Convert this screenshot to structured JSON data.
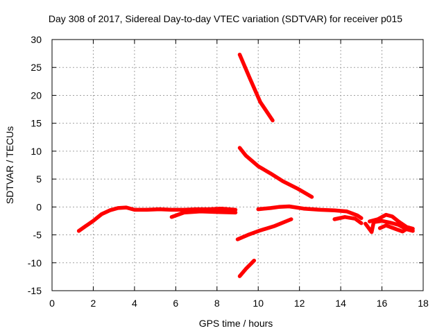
{
  "chart_data": {
    "type": "scatter",
    "title": "Day 308 of 2017, Sidereal Day-to-day VTEC variation (SDTVAR) for receiver p015",
    "xlabel": "GPS time / hours",
    "ylabel": "SDTVAR / TECUs",
    "xlim": [
      0,
      18
    ],
    "ylim": [
      -15,
      30
    ],
    "xticks": [
      "0",
      "2",
      "4",
      "6",
      "8",
      "10",
      "12",
      "14",
      "16",
      "18"
    ],
    "yticks": [
      "-15",
      "-10",
      "-5",
      "0",
      "5",
      "10",
      "15",
      "20",
      "25",
      "30"
    ],
    "grid": true,
    "color": "#ff0000",
    "series": [
      {
        "points": [
          [
            1.3,
            -4.3
          ],
          [
            1.6,
            -3.5
          ],
          [
            2.0,
            -2.5
          ],
          [
            2.4,
            -1.3
          ],
          [
            2.8,
            -0.6
          ],
          [
            3.2,
            -0.2
          ],
          [
            3.6,
            -0.1
          ],
          [
            4.0,
            -0.5
          ],
          [
            4.6,
            -0.5
          ],
          [
            5.2,
            -0.4
          ],
          [
            5.8,
            -0.5
          ],
          [
            6.4,
            -0.5
          ],
          [
            7.0,
            -0.4
          ],
          [
            7.6,
            -0.4
          ],
          [
            8.2,
            -0.3
          ],
          [
            8.9,
            -0.5
          ]
        ]
      },
      {
        "points": [
          [
            5.8,
            -1.8
          ],
          [
            6.4,
            -1.0
          ],
          [
            7.2,
            -0.8
          ],
          [
            8.0,
            -0.9
          ],
          [
            8.9,
            -1.0
          ]
        ]
      },
      {
        "points": [
          [
            9.1,
            27.3
          ],
          [
            9.6,
            23.0
          ],
          [
            10.1,
            18.8
          ],
          [
            10.7,
            15.5
          ]
        ]
      },
      {
        "points": [
          [
            9.1,
            10.6
          ],
          [
            9.4,
            9.2
          ],
          [
            10.0,
            7.3
          ],
          [
            10.6,
            6.0
          ],
          [
            11.2,
            4.6
          ],
          [
            11.9,
            3.3
          ],
          [
            12.6,
            1.8
          ]
        ]
      },
      {
        "points": [
          [
            9.0,
            -5.8
          ],
          [
            9.5,
            -5.0
          ],
          [
            10.1,
            -4.2
          ],
          [
            10.8,
            -3.4
          ],
          [
            11.6,
            -2.2
          ]
        ]
      },
      {
        "points": [
          [
            9.1,
            -12.4
          ],
          [
            9.4,
            -11.1
          ],
          [
            9.8,
            -9.6
          ]
        ]
      },
      {
        "points": [
          [
            10.0,
            -0.4
          ],
          [
            10.6,
            -0.2
          ],
          [
            11.0,
            0.0
          ],
          [
            11.5,
            0.1
          ],
          [
            12.2,
            -0.3
          ],
          [
            13.0,
            -0.5
          ],
          [
            13.7,
            -0.6
          ],
          [
            14.3,
            -0.8
          ],
          [
            14.8,
            -1.5
          ],
          [
            15.0,
            -2.0
          ]
        ]
      },
      {
        "points": [
          [
            13.7,
            -2.2
          ],
          [
            14.2,
            -1.8
          ],
          [
            14.7,
            -2.1
          ],
          [
            15.0,
            -2.9
          ]
        ]
      },
      {
        "points": [
          [
            15.2,
            -3.0
          ],
          [
            15.5,
            -4.5
          ],
          [
            15.6,
            -2.7
          ],
          [
            16.0,
            -2.5
          ],
          [
            16.4,
            -2.8
          ],
          [
            16.8,
            -3.2
          ],
          [
            17.2,
            -4.0
          ],
          [
            17.5,
            -4.3
          ]
        ]
      },
      {
        "points": [
          [
            15.4,
            -2.6
          ],
          [
            15.8,
            -2.2
          ],
          [
            16.2,
            -1.4
          ],
          [
            16.5,
            -1.7
          ],
          [
            16.8,
            -2.6
          ],
          [
            17.2,
            -3.6
          ],
          [
            17.5,
            -3.9
          ]
        ]
      },
      {
        "points": [
          [
            15.9,
            -3.8
          ],
          [
            16.2,
            -3.3
          ],
          [
            16.7,
            -4.0
          ],
          [
            17.0,
            -4.4
          ],
          [
            17.3,
            -3.7
          ]
        ]
      }
    ]
  }
}
